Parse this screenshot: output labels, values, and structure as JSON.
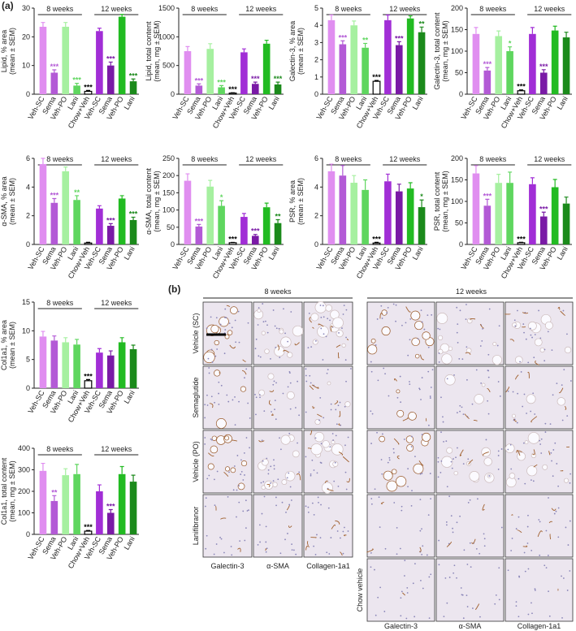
{
  "panel_labels": [
    "(a)",
    "(b)"
  ],
  "chart_data": [
    {
      "type": "bar",
      "ylabel": [
        "Lipid, % area",
        "(mean ± SEM)"
      ],
      "groups": [
        "8 weeks",
        "12 weeks"
      ],
      "categories": [
        "Veh-SC",
        "Sema",
        "Veh-PO",
        "Lani",
        "Chow+Veh",
        "Veh-SC",
        "Sema",
        "Veh-PO",
        "Lani"
      ],
      "values": [
        23.5,
        7.5,
        23.5,
        3,
        1,
        22,
        10,
        27,
        4.5
      ],
      "errors": [
        1.5,
        1,
        1.5,
        0.8,
        0.3,
        1,
        1.2,
        0.8,
        0.8
      ],
      "colors": [
        "#e08ef0",
        "#b35ad6",
        "#a6f0a0",
        "#5fd65f",
        "#ffffff",
        "#a12ed6",
        "#7a1aa6",
        "#22bb22",
        "#1b8a1b"
      ],
      "significance": [
        null,
        "***",
        null,
        "***",
        "***",
        null,
        "***",
        null,
        "***"
      ],
      "ylim": [
        0,
        30
      ],
      "yticks": [
        0,
        10,
        20,
        30
      ]
    },
    {
      "type": "bar",
      "ylabel": [
        "Lipid, total content",
        "(mean, mg ± SEM)"
      ],
      "groups": [
        "8 weeks",
        "12 weeks"
      ],
      "categories": [
        "Veh-SC",
        "Sema",
        "Veh-PO",
        "Lani",
        "Chow+Veh",
        "Veh-SC",
        "Sema",
        "Veh-PO",
        "Lani"
      ],
      "values": [
        750,
        150,
        790,
        120,
        20,
        730,
        180,
        880,
        170
      ],
      "errors": [
        80,
        30,
        90,
        30,
        5,
        60,
        30,
        60,
        40
      ],
      "colors": [
        "#e08ef0",
        "#b35ad6",
        "#a6f0a0",
        "#5fd65f",
        "#ffffff",
        "#a12ed6",
        "#7a1aa6",
        "#22bb22",
        "#1b8a1b"
      ],
      "significance": [
        null,
        "***",
        null,
        "***",
        "***",
        null,
        "***",
        null,
        "***"
      ],
      "ylim": [
        0,
        1500
      ],
      "yticks": [
        0,
        500,
        1000,
        1500
      ]
    },
    {
      "type": "bar",
      "ylabel": [
        "Galectin-3, % area",
        "(mean ± SEM)"
      ],
      "groups": [
        "8 weeks",
        "12 weeks"
      ],
      "categories": [
        "Veh-SC",
        "Sema",
        "Veh-PO",
        "Lani",
        "Chow+Veh",
        "Veh-SC",
        "Sema",
        "Veh-PO",
        "Lani"
      ],
      "values": [
        4.3,
        2.9,
        4.0,
        2.7,
        0.75,
        4.3,
        2.85,
        4.4,
        3.6
      ],
      "errors": [
        0.3,
        0.2,
        0.25,
        0.25,
        0.05,
        0.3,
        0.2,
        0.15,
        0.3
      ],
      "colors": [
        "#e08ef0",
        "#b35ad6",
        "#a6f0a0",
        "#5fd65f",
        "#ffffff",
        "#a12ed6",
        "#7a1aa6",
        "#22bb22",
        "#1b8a1b"
      ],
      "significance": [
        null,
        "***",
        null,
        "**",
        "***",
        null,
        "***",
        null,
        "**"
      ],
      "ylim": [
        0,
        5
      ],
      "yticks": [
        0,
        1,
        2,
        3,
        4,
        5
      ]
    },
    {
      "type": "bar",
      "ylabel": [
        "Galectin-3, total content",
        "(mean, mg ± SEM)"
      ],
      "groups": [
        "8 weeks",
        "12 weeks"
      ],
      "categories": [
        "Veh-SC",
        "Sema",
        "Veh-PO",
        "Lani",
        "Chow+Veh",
        "Veh-SC",
        "Sema",
        "Veh-PO",
        "Lani"
      ],
      "values": [
        140,
        55,
        135,
        100,
        8,
        140,
        50,
        148,
        132
      ],
      "errors": [
        15,
        7,
        12,
        10,
        2,
        15,
        7,
        10,
        12
      ],
      "colors": [
        "#e08ef0",
        "#b35ad6",
        "#a6f0a0",
        "#5fd65f",
        "#ffffff",
        "#a12ed6",
        "#7a1aa6",
        "#22bb22",
        "#1b8a1b"
      ],
      "significance": [
        null,
        "***",
        null,
        "*",
        "***",
        null,
        "***",
        null,
        null
      ],
      "ylim": [
        0,
        200
      ],
      "yticks": [
        0,
        50,
        100,
        150,
        200
      ]
    },
    {
      "type": "bar",
      "ylabel": [
        "α-SMA, % area",
        "(mean ± SEM)"
      ],
      "groups": [
        "8 weeks",
        "12 weeks"
      ],
      "categories": [
        "Veh-SC",
        "Sema",
        "Veh-PO",
        "Lani",
        "Chow+Veh",
        "Veh-SC",
        "Sema",
        "Veh-PO",
        "Lani"
      ],
      "values": [
        5.6,
        2.9,
        5.1,
        3.1,
        0.1,
        2.5,
        1.3,
        3.2,
        1.7
      ],
      "errors": [
        0.4,
        0.3,
        0.3,
        0.3,
        0.05,
        0.2,
        0.15,
        0.2,
        0.2
      ],
      "colors": [
        "#e08ef0",
        "#b35ad6",
        "#a6f0a0",
        "#5fd65f",
        "#ffffff",
        "#a12ed6",
        "#7a1aa6",
        "#22bb22",
        "#1b8a1b"
      ],
      "significance": [
        null,
        "***",
        null,
        "**",
        null,
        null,
        "***",
        null,
        "***"
      ],
      "ylim": [
        0,
        6
      ],
      "yticks": [
        0,
        2,
        4,
        6
      ]
    },
    {
      "type": "bar",
      "ylabel": [
        "α-SMA, total content",
        "(mean, mg ± SEM)"
      ],
      "groups": [
        "8 weeks",
        "12 weeks"
      ],
      "categories": [
        "Veh-SC",
        "Sema",
        "Veh-PO",
        "Lani",
        "Chow+Veh",
        "Veh-SC",
        "Sema",
        "Veh-PO",
        "Lani"
      ],
      "values": [
        185,
        52,
        168,
        112,
        5,
        80,
        25,
        108,
        62
      ],
      "errors": [
        20,
        6,
        18,
        15,
        1,
        10,
        4,
        12,
        10
      ],
      "colors": [
        "#e08ef0",
        "#b35ad6",
        "#a6f0a0",
        "#5fd65f",
        "#ffffff",
        "#a12ed6",
        "#7a1aa6",
        "#22bb22",
        "#1b8a1b"
      ],
      "significance": [
        null,
        "***",
        null,
        "*",
        "***",
        null,
        "***",
        null,
        "**"
      ],
      "ylim": [
        0,
        250
      ],
      "yticks": [
        0,
        50,
        100,
        150,
        200,
        250
      ]
    },
    {
      "type": "bar",
      "ylabel": [
        "PSR, % area",
        "(mean ± SEM)"
      ],
      "groups": [
        "8 weeks",
        "12 weeks"
      ],
      "categories": [
        "Veh-SC",
        "Sema",
        "Veh-PO",
        "Lani",
        "Chow+Veh",
        "Veh-SC",
        "Sema",
        "Veh-PO",
        "Lani"
      ],
      "values": [
        5.1,
        4.8,
        4.3,
        3.8,
        0.1,
        4.4,
        3.7,
        3.9,
        2.6
      ],
      "errors": [
        0.5,
        0.7,
        0.5,
        0.7,
        0.05,
        0.5,
        0.5,
        0.4,
        0.5
      ],
      "colors": [
        "#e08ef0",
        "#b35ad6",
        "#a6f0a0",
        "#5fd65f",
        "#ffffff",
        "#a12ed6",
        "#7a1aa6",
        "#22bb22",
        "#1b8a1b"
      ],
      "significance": [
        null,
        null,
        null,
        null,
        "***",
        null,
        null,
        null,
        "*"
      ],
      "ylim": [
        0,
        6
      ],
      "yticks": [
        0,
        2,
        4,
        6
      ]
    },
    {
      "type": "bar",
      "ylabel": [
        "PSR, total content",
        "(mean, mg ± SEM)"
      ],
      "groups": [
        "8 weeks",
        "12 weeks"
      ],
      "categories": [
        "Veh-SC",
        "Sema",
        "Veh-PO",
        "Lani",
        "Chow+Veh",
        "Veh-SC",
        "Sema",
        "Veh-PO",
        "Lani"
      ],
      "values": [
        165,
        90,
        143,
        143,
        4,
        140,
        65,
        133,
        95
      ],
      "errors": [
        18,
        15,
        20,
        25,
        1,
        15,
        10,
        18,
        15
      ],
      "colors": [
        "#e08ef0",
        "#b35ad6",
        "#a6f0a0",
        "#5fd65f",
        "#ffffff",
        "#a12ed6",
        "#7a1aa6",
        "#22bb22",
        "#1b8a1b"
      ],
      "significance": [
        null,
        "***",
        null,
        null,
        "***",
        null,
        "***",
        null,
        null
      ],
      "ylim": [
        0,
        200
      ],
      "yticks": [
        0,
        50,
        100,
        150,
        200
      ]
    },
    {
      "type": "bar",
      "ylabel": [
        "Col1a1, % area",
        "(mean ± SEM)"
      ],
      "groups": [
        "8 weeks",
        "12 weeks"
      ],
      "categories": [
        "Veh-SC",
        "Sema",
        "Veh-PO",
        "Lani",
        "Chow+Veh",
        "Veh-SC",
        "Sema",
        "Veh-PO",
        "Lani"
      ],
      "values": [
        9,
        8.3,
        8,
        7.6,
        1.3,
        6.2,
        5.7,
        8,
        6.8
      ],
      "errors": [
        0.9,
        0.8,
        0.8,
        0.9,
        0.2,
        0.7,
        0.8,
        0.8,
        0.7
      ],
      "colors": [
        "#e08ef0",
        "#b35ad6",
        "#a6f0a0",
        "#5fd65f",
        "#ffffff",
        "#a12ed6",
        "#7a1aa6",
        "#22bb22",
        "#1b8a1b"
      ],
      "significance": [
        null,
        null,
        null,
        null,
        "***",
        null,
        null,
        null,
        null
      ],
      "ylim": [
        0,
        15
      ],
      "yticks": [
        0,
        5,
        10,
        15
      ]
    },
    {
      "type": "bar",
      "ylabel": [
        "Col1a1, total content",
        "(mean, mg ± SEM)"
      ],
      "groups": [
        "8 weeks",
        "12 weeks"
      ],
      "categories": [
        "Veh-SC",
        "Sema",
        "Veh-PO",
        "Lani",
        "Chow+Veh",
        "Veh-SC",
        "Sema",
        "Veh-PO",
        "Lani"
      ],
      "values": [
        295,
        155,
        275,
        280,
        15,
        200,
        100,
        280,
        245
      ],
      "errors": [
        35,
        25,
        30,
        45,
        3,
        30,
        15,
        35,
        30
      ],
      "colors": [
        "#e08ef0",
        "#b35ad6",
        "#a6f0a0",
        "#5fd65f",
        "#ffffff",
        "#a12ed6",
        "#7a1aa6",
        "#22bb22",
        "#1b8a1b"
      ],
      "significance": [
        null,
        "**",
        null,
        null,
        "***",
        null,
        "***",
        null,
        null
      ],
      "ylim": [
        0,
        400
      ],
      "yticks": [
        0,
        100,
        200,
        300,
        400
      ]
    }
  ],
  "micrographs": {
    "groups": [
      "8 weeks",
      "12 weeks"
    ],
    "rows": [
      "Vehicle (SC)",
      "Semaglutide",
      "Vehicle (PO)",
      "Lanifibranor",
      "Chow vehicle"
    ],
    "stains": [
      "Galectin-3",
      "α-SMA",
      "Collagen-1a1"
    ]
  }
}
